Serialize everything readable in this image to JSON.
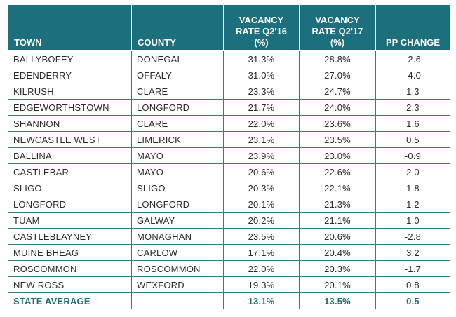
{
  "table": {
    "headers": {
      "town": "TOWN",
      "county": "COUNTY",
      "vacancy_q2_16": [
        "VACANCY",
        "RATE Q2'16",
        "(%)"
      ],
      "vacancy_q2_17": [
        "VACANCY",
        "RATE Q2'17",
        "(%)"
      ],
      "pp_change": "PP CHANGE"
    },
    "rows": [
      {
        "town": "BALLYBOFEY",
        "county": "DONEGAL",
        "q2_16": "31.3%",
        "q2_17": "28.8%",
        "pp": "-2.6"
      },
      {
        "town": "EDENDERRY",
        "county": "OFFALY",
        "q2_16": "31.0%",
        "q2_17": "27.0%",
        "pp": "-4.0"
      },
      {
        "town": "KILRUSH",
        "county": "CLARE",
        "q2_16": "23.3%",
        "q2_17": "24.7%",
        "pp": "1.3"
      },
      {
        "town": "EDGEWORTHSTOWN",
        "county": "LONGFORD",
        "q2_16": "21.7%",
        "q2_17": "24.0%",
        "pp": "2.3"
      },
      {
        "town": "SHANNON",
        "county": "CLARE",
        "q2_16": "22.0%",
        "q2_17": "23.6%",
        "pp": "1.6"
      },
      {
        "town": "NEWCASTLE WEST",
        "county": "LIMERICK",
        "q2_16": "23.1%",
        "q2_17": "23.5%",
        "pp": "0.5"
      },
      {
        "town": "BALLINA",
        "county": "MAYO",
        "q2_16": "23.9%",
        "q2_17": "23.0%",
        "pp": "-0.9"
      },
      {
        "town": "CASTLEBAR",
        "county": "MAYO",
        "q2_16": "20.6%",
        "q2_17": "22.6%",
        "pp": "2.0"
      },
      {
        "town": "SLIGO",
        "county": "SLIGO",
        "q2_16": "20.3%",
        "q2_17": "22.1%",
        "pp": "1.8"
      },
      {
        "town": "LONGFORD",
        "county": "LONGFORD",
        "q2_16": "20.1%",
        "q2_17": "21.3%",
        "pp": "1.2"
      },
      {
        "town": "TUAM",
        "county": "GALWAY",
        "q2_16": "20.2%",
        "q2_17": "21.1%",
        "pp": "1.0"
      },
      {
        "town": "CASTLEBLAYNEY",
        "county": "MONAGHAN",
        "q2_16": "23.5%",
        "q2_17": "20.6%",
        "pp": "-2.8"
      },
      {
        "town": "MUINE BHEAG",
        "county": "CARLOW",
        "q2_16": "17.1%",
        "q2_17": "20.4%",
        "pp": "3.2"
      },
      {
        "town": "ROSCOMMON",
        "county": "ROSCOMMON",
        "q2_16": "22.0%",
        "q2_17": "20.3%",
        "pp": "-1.7"
      },
      {
        "town": "NEW ROSS",
        "county": "WEXFORD",
        "q2_16": "19.3%",
        "q2_17": "20.1%",
        "pp": "0.8"
      }
    ],
    "average": {
      "town": "STATE AVERAGE",
      "county": "",
      "q2_16": "13.1%",
      "q2_17": "13.5%",
      "pp": "0.5"
    }
  },
  "colors": {
    "header_bg": "#1c6f7c",
    "border": "#2a7d89",
    "average_text": "#1c6f7c"
  }
}
